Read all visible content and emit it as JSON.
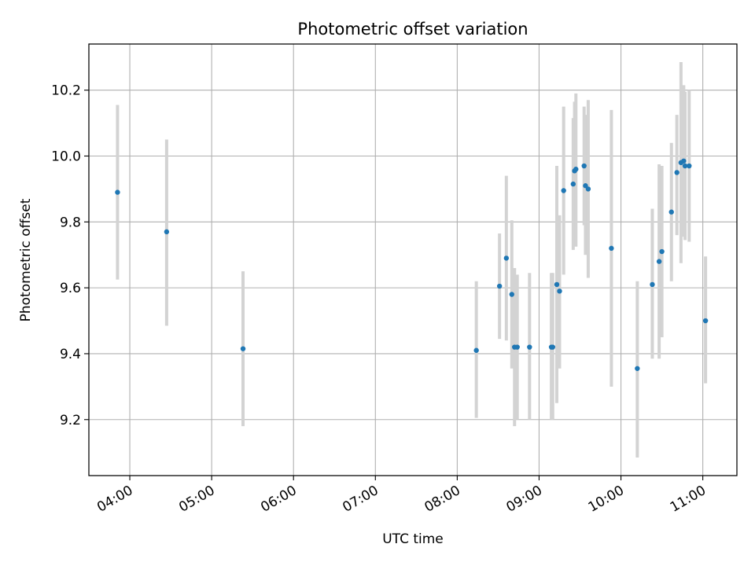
{
  "chart_data": {
    "type": "scatter",
    "title": "Photometric offset variation",
    "xlabel": "UTC time",
    "ylabel": "Photometric offset",
    "x_ticks": [
      "04:00",
      "05:00",
      "06:00",
      "07:00",
      "08:00",
      "09:00",
      "10:00",
      "11:00"
    ],
    "y_ticks": [
      "9.2",
      "9.4",
      "9.6",
      "9.8",
      "10.0",
      "10.2"
    ],
    "xlim": [
      "03:30",
      "11:25"
    ],
    "ylim": [
      9.03,
      10.34
    ],
    "grid": true,
    "point_color": "#1f77b4",
    "errorbar_color": "#d3d3d3",
    "points": [
      {
        "x": "03:51",
        "y": 9.89,
        "lo": 9.625,
        "hi": 10.155
      },
      {
        "x": "04:27",
        "y": 9.77,
        "lo": 9.485,
        "hi": 10.05
      },
      {
        "x": "05:23",
        "y": 9.415,
        "lo": 9.18,
        "hi": 9.65
      },
      {
        "x": "08:14",
        "y": 9.41,
        "lo": 9.205,
        "hi": 9.62
      },
      {
        "x": "08:31",
        "y": 9.605,
        "lo": 9.445,
        "hi": 9.765
      },
      {
        "x": "08:36",
        "y": 9.69,
        "lo": 9.44,
        "hi": 9.94
      },
      {
        "x": "08:40",
        "y": 9.58,
        "lo": 9.355,
        "hi": 9.805
      },
      {
        "x": "08:42",
        "y": 9.42,
        "lo": 9.18,
        "hi": 9.66
      },
      {
        "x": "08:44",
        "y": 9.42,
        "lo": 9.2,
        "hi": 9.64
      },
      {
        "x": "08:53",
        "y": 9.42,
        "lo": 9.2,
        "hi": 9.645
      },
      {
        "x": "09:09",
        "y": 9.42,
        "lo": 9.2,
        "hi": 9.645
      },
      {
        "x": "09:10",
        "y": 9.42,
        "lo": 9.2,
        "hi": 9.645
      },
      {
        "x": "09:13",
        "y": 9.61,
        "lo": 9.25,
        "hi": 9.97
      },
      {
        "x": "09:15",
        "y": 9.59,
        "lo": 9.355,
        "hi": 9.82
      },
      {
        "x": "09:18",
        "y": 9.895,
        "lo": 9.64,
        "hi": 10.15
      },
      {
        "x": "09:25",
        "y": 9.915,
        "lo": 9.715,
        "hi": 10.115
      },
      {
        "x": "09:26",
        "y": 9.955,
        "lo": 9.745,
        "hi": 10.165
      },
      {
        "x": "09:27",
        "y": 9.96,
        "lo": 9.725,
        "hi": 10.19
      },
      {
        "x": "09:33",
        "y": 9.97,
        "lo": 9.79,
        "hi": 10.15
      },
      {
        "x": "09:34",
        "y": 9.91,
        "lo": 9.7,
        "hi": 10.125
      },
      {
        "x": "09:36",
        "y": 9.9,
        "lo": 9.63,
        "hi": 10.17
      },
      {
        "x": "09:53",
        "y": 9.72,
        "lo": 9.3,
        "hi": 10.14
      },
      {
        "x": "10:12",
        "y": 9.355,
        "lo": 9.085,
        "hi": 9.62
      },
      {
        "x": "10:23",
        "y": 9.61,
        "lo": 9.385,
        "hi": 9.84
      },
      {
        "x": "10:28",
        "y": 9.68,
        "lo": 9.385,
        "hi": 9.975
      },
      {
        "x": "10:30",
        "y": 9.71,
        "lo": 9.45,
        "hi": 9.97
      },
      {
        "x": "10:37",
        "y": 9.83,
        "lo": 9.62,
        "hi": 10.04
      },
      {
        "x": "10:41",
        "y": 9.95,
        "lo": 9.76,
        "hi": 10.125
      },
      {
        "x": "10:44",
        "y": 9.98,
        "lo": 9.675,
        "hi": 10.285
      },
      {
        "x": "10:46",
        "y": 9.985,
        "lo": 9.755,
        "hi": 10.215
      },
      {
        "x": "10:47",
        "y": 9.97,
        "lo": 9.745,
        "hi": 10.195
      },
      {
        "x": "10:50",
        "y": 9.97,
        "lo": 9.74,
        "hi": 10.2
      },
      {
        "x": "11:02",
        "y": 9.5,
        "lo": 9.31,
        "hi": 9.695
      }
    ]
  }
}
